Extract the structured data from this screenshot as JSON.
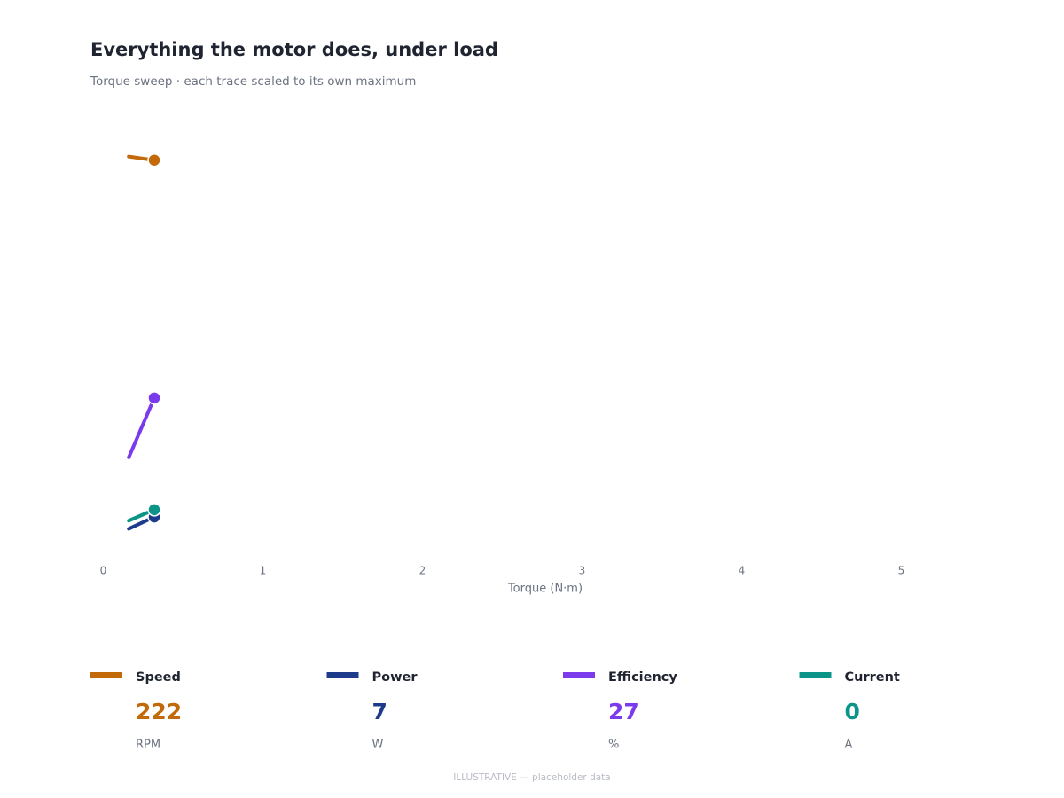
{
  "chart_data": {
    "type": "line",
    "title": "Everything the motor does, under load",
    "subtitle": "Torque sweep · each trace scaled to its own maximum",
    "x_label": "Torque (N·m)",
    "x": [
      0.16,
      0.32
    ],
    "xlim": [
      -0.08,
      5.62
    ],
    "xticks": [
      0,
      1,
      2,
      3,
      4,
      5
    ],
    "series": [
      {
        "name": "Speed",
        "unit": "RPM",
        "color": "#c2690a",
        "values": [
          224,
          222
        ],
        "ylim": [
          0,
          252
        ]
      },
      {
        "name": "Power",
        "unit": "W",
        "color": "#1e3a8a",
        "values": [
          5,
          7
        ],
        "ylim": [
          0,
          76
        ]
      },
      {
        "name": "Efficiency",
        "unit": "%",
        "color": "#7c3aed",
        "values": [
          17,
          27
        ],
        "ylim": [
          0,
          76
        ]
      },
      {
        "name": "Current",
        "unit": "A",
        "color": "#0d9488",
        "values": [
          0.31,
          0.4
        ],
        "value_labels": [
          null,
          "0"
        ],
        "ylim": [
          0,
          3.7
        ]
      }
    ],
    "footnote": "ILLUSTRATIVE — placeholder data"
  }
}
